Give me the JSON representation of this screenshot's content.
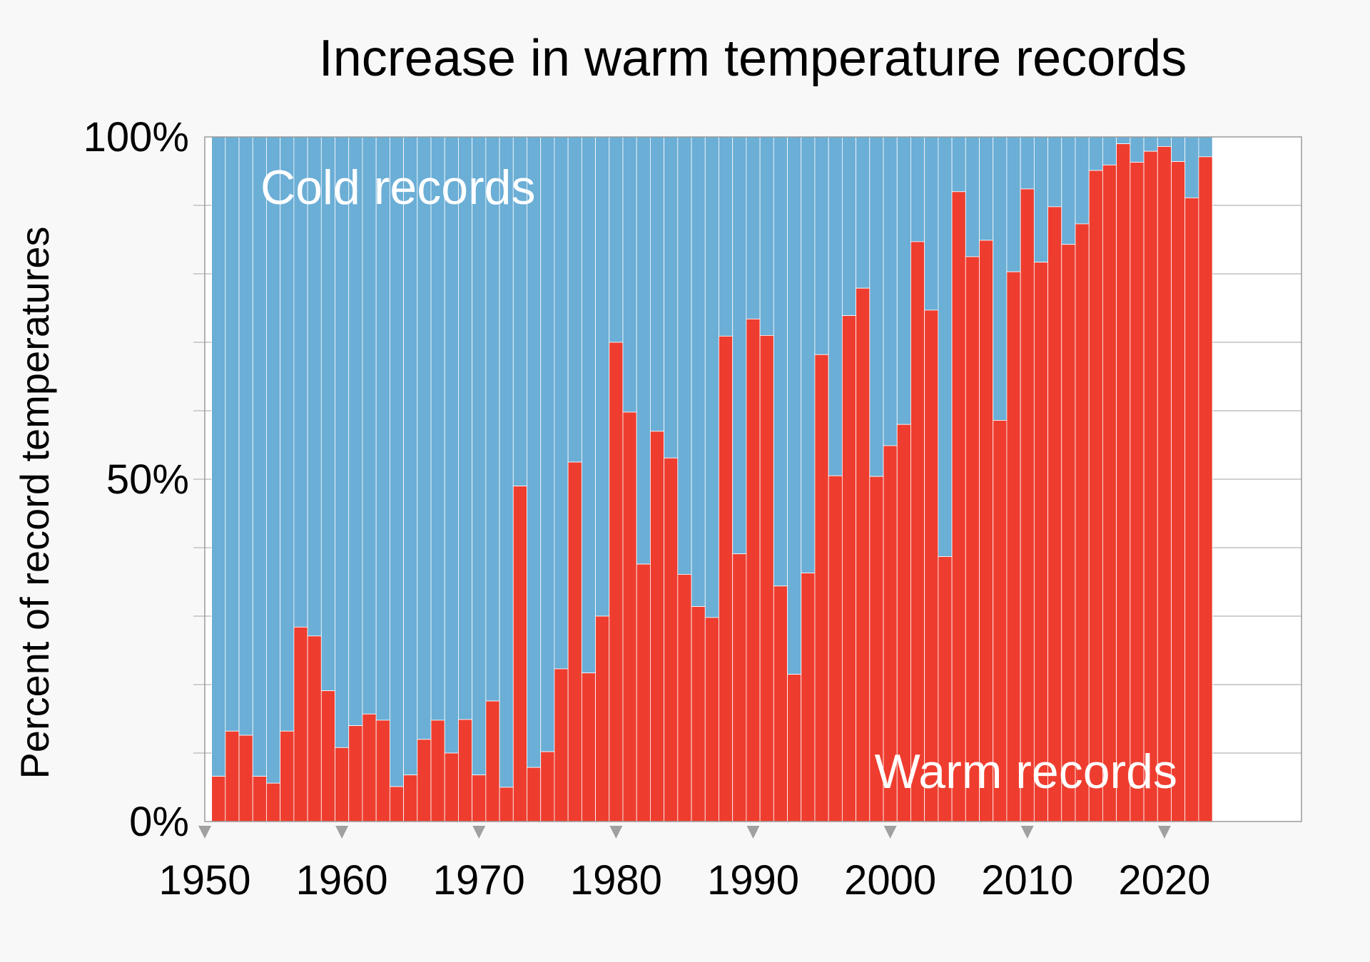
{
  "chart_data": {
    "type": "bar",
    "stacked": true,
    "title": "Increase in warm temperature records",
    "xlabel": "",
    "ylabel": "Percent of record temperatures",
    "xlim": [
      1950,
      2030
    ],
    "ylim": [
      0,
      100
    ],
    "grid": true,
    "x_ticks": [
      "1950",
      "1960",
      "1970",
      "1980",
      "1990",
      "2000",
      "2010",
      "2020"
    ],
    "y_ticks": [
      "0%",
      "50%",
      "100%"
    ],
    "colors": {
      "warm": "#ee3d2f",
      "cold": "#6baed6"
    },
    "annotations": {
      "cold": "Cold records",
      "warm": "Warm records"
    },
    "x": [
      1951,
      1952,
      1953,
      1954,
      1955,
      1956,
      1957,
      1958,
      1959,
      1960,
      1961,
      1962,
      1963,
      1964,
      1965,
      1966,
      1967,
      1968,
      1969,
      1970,
      1971,
      1972,
      1973,
      1974,
      1975,
      1976,
      1977,
      1978,
      1979,
      1980,
      1981,
      1982,
      1983,
      1984,
      1985,
      1986,
      1987,
      1988,
      1989,
      1990,
      1991,
      1992,
      1993,
      1994,
      1995,
      1996,
      1997,
      1998,
      1999,
      2000,
      2001,
      2002,
      2003,
      2004,
      2005,
      2006,
      2007,
      2008,
      2009,
      2010,
      2011,
      2012,
      2013,
      2014,
      2015,
      2016,
      2017,
      2018,
      2019,
      2020,
      2021,
      2022,
      2023
    ],
    "series": [
      {
        "name": "Warm records",
        "values": [
          6.6,
          13.2,
          12.6,
          6.6,
          5.6,
          13.2,
          28.4,
          27.1,
          19.1,
          10.8,
          14.0,
          15.7,
          14.8,
          5.1,
          6.8,
          12.0,
          14.8,
          10.0,
          14.9,
          6.8,
          17.6,
          5.0,
          49.0,
          7.9,
          10.2,
          22.3,
          52.5,
          21.7,
          30.0,
          70.0,
          59.8,
          37.6,
          57.0,
          53.1,
          36.1,
          31.4,
          29.8,
          70.9,
          39.1,
          73.4,
          71.0,
          34.4,
          21.5,
          36.3,
          68.2,
          50.5,
          73.9,
          77.9,
          50.4,
          54.9,
          58.0,
          84.7,
          74.7,
          38.7,
          92.0,
          82.5,
          84.9,
          58.6,
          80.3,
          92.4,
          81.7,
          89.8,
          84.3,
          87.3,
          95.1,
          95.9,
          99.0,
          96.3,
          97.9,
          98.6,
          96.4,
          91.1,
          97.1
        ]
      },
      {
        "name": "Cold records",
        "values": "remainder of 100%"
      }
    ]
  }
}
